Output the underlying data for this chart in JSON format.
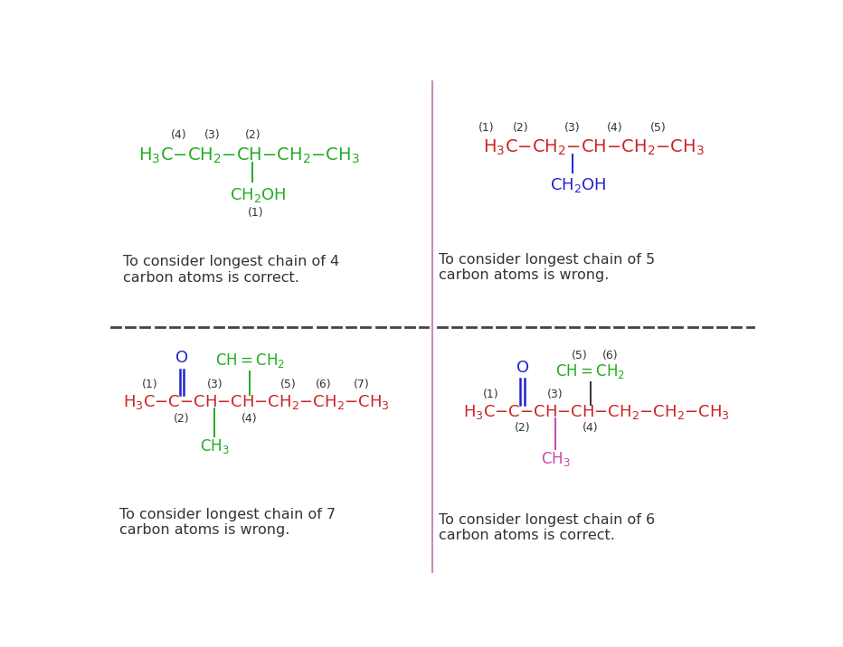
{
  "bg_color": "#ffffff",
  "divider_v_color": "#cc88bb",
  "divider_h_color": "#444444",
  "text_color": "#333333",
  "green": "#22aa22",
  "red": "#cc2222",
  "blue": "#2222cc",
  "pink_branch": "#cc44aa",
  "panel1_caption": "To consider longest chain of 4\ncarbon atoms is correct.",
  "panel2_caption": "To consider longest chain of 5\ncarbon atoms is wrong.",
  "panel3_caption": "To consider longest chain of 7\ncarbon atoms is wrong.",
  "panel4_caption": "To consider longest chain of 6\ncarbon atoms is correct."
}
